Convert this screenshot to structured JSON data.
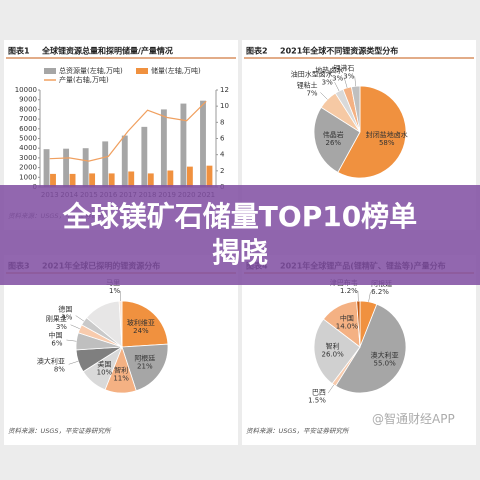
{
  "banner": "全球镁矿石储量TOP10榜单揭晓",
  "watermark": "@智通财经APP",
  "chart_data": [
    {
      "type": "bar",
      "figure": "图表1",
      "title": "全球锂资源总量和探明储量/产量情况",
      "categories": [
        "2013",
        "2014",
        "2015",
        "2016",
        "2017",
        "2018",
        "2019",
        "2020",
        "2021"
      ],
      "series": [
        {
          "name": "总资源量(左轴,万吨)",
          "color": "#a6a6a6",
          "values": [
            3900,
            3950,
            4000,
            4700,
            5300,
            6200,
            8000,
            8600,
            8900
          ]
        },
        {
          "name": "储量(左轴,万吨)",
          "color": "#f0913f",
          "values": [
            1350,
            1350,
            1400,
            1400,
            1600,
            1400,
            1700,
            2100,
            2200
          ]
        },
        {
          "name": "产量(右轴,万吨)",
          "color": "#f0a060",
          "type": "line",
          "axis": "y2",
          "values": [
            3.5,
            3.6,
            3.2,
            3.8,
            6.9,
            9.5,
            8.6,
            8.2,
            10.6
          ]
        }
      ],
      "ylim": [
        0,
        10000
      ],
      "yticks": [
        0,
        1000,
        2000,
        3000,
        4000,
        5000,
        6000,
        7000,
        8000,
        9000,
        10000
      ],
      "y2lim": [
        0,
        12
      ],
      "y2ticks": [
        0,
        2,
        4,
        6,
        8,
        10,
        12
      ],
      "source": "资料来源：USGS，平安证券研究所"
    },
    {
      "type": "pie",
      "figure": "图表2",
      "title": "2021年全球不同锂资源类型分布",
      "categories": [
        "封闭盐地卤水",
        "伟晶岩",
        "锂粘土",
        "油田水型卤水",
        "地热卤水",
        "锂沸石"
      ],
      "values": [
        58,
        26,
        7,
        3,
        3,
        3
      ],
      "value_labels": [
        "58%",
        "26%",
        "7%",
        "3%",
        "3%",
        "3%"
      ],
      "colors": [
        "#f0913f",
        "#a6a6a6",
        "#f6c9a4",
        "#d9d9d9",
        "#f4b183",
        "#bfbfbf"
      ]
    },
    {
      "type": "pie",
      "figure": "图表3",
      "title": "2021年全球已探明的锂资源分布",
      "categories": [
        "玻利维亚",
        "阿根廷",
        "智利",
        "美国",
        "澳大利亚",
        "中国",
        "刚果金",
        "德国",
        null,
        "马里"
      ],
      "values": [
        24,
        21,
        11,
        10,
        8,
        6,
        3,
        3,
        13,
        1
      ],
      "value_labels": [
        "24%",
        "21%",
        "11%",
        "10%",
        "8%",
        "6%",
        "3%",
        "3%",
        null,
        "1%"
      ],
      "colors": [
        "#f0913f",
        "#a6a6a6",
        "#f4b183",
        "#d9d9d9",
        "#7f7f7f",
        "#bfbfbf",
        "#f8cbad",
        "#c9c9c9",
        "#e7e6e6",
        "#fbe5d6"
      ],
      "source": "资料来源：USGS，平安证券研究所"
    },
    {
      "type": "pie",
      "figure": "图表4",
      "title": "2021年全球锂产品(锂精矿、锂盐等)产量分布",
      "categories": [
        "阿根廷",
        "澳大利亚",
        "巴西",
        "智利",
        "中国",
        "津巴布韦"
      ],
      "values": [
        6.2,
        55.0,
        1.5,
        26.0,
        14.0,
        1.2
      ],
      "value_labels": [
        "6.2%",
        "55.0%",
        "1.5%",
        "26.0%",
        "14.0%",
        "1.2%"
      ],
      "colors": [
        "#f0913f",
        "#a6a6a6",
        "#f8cbad",
        "#d0d0d0",
        "#f4b183",
        "#c55a11"
      ],
      "source": "资料来源：USGS，平安证券研究所"
    }
  ]
}
